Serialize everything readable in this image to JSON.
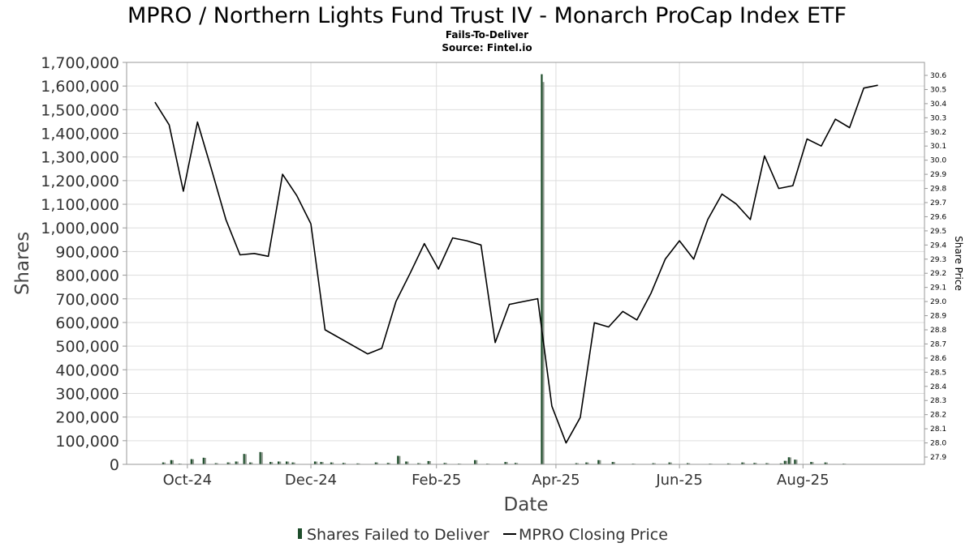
{
  "chart_data": {
    "type": "bar+line",
    "title": "MPRO / Northern Lights Fund Trust IV - Monarch ProCap Index ETF",
    "subtitle_lines": [
      "Fails-To-Deliver",
      "Source: Fintel.io"
    ],
    "xlabel": "Date",
    "ylabel": "Shares",
    "y2label": "Share Price",
    "ylim": [
      0,
      1700000
    ],
    "y2lim": [
      27.9,
      30.6
    ],
    "xlim": [
      "2024-09-01",
      "2025-09-30"
    ],
    "yticks": [
      "0",
      "100,000",
      "200,000",
      "300,000",
      "400,000",
      "500,000",
      "600,000",
      "700,000",
      "800,000",
      "900,000",
      "1,000,000",
      "1,100,000",
      "1,200,000",
      "1,300,000",
      "1,400,000",
      "1,500,000",
      "1,600,000",
      "1,700,000"
    ],
    "y2ticks": [
      "27.9",
      "28.0",
      "28.1",
      "28.2",
      "28.3",
      "28.4",
      "28.5",
      "28.6",
      "28.7",
      "28.8",
      "28.9",
      "29.0",
      "29.1",
      "29.2",
      "29.3",
      "29.4",
      "29.5",
      "29.6",
      "29.7",
      "29.8",
      "29.9",
      "30.0",
      "30.1",
      "30.2",
      "30.3",
      "30.4",
      "30.5",
      "30.6"
    ],
    "xticks": [
      {
        "date": "2024-10-01",
        "label": "Oct-24"
      },
      {
        "date": "2024-12-01",
        "label": "Dec-24"
      },
      {
        "date": "2025-02-01",
        "label": "Feb-25"
      },
      {
        "date": "2025-04-01",
        "label": "Apr-25"
      },
      {
        "date": "2025-06-01",
        "label": "Jun-25"
      },
      {
        "date": "2025-08-01",
        "label": "Aug-25"
      }
    ],
    "grid": true,
    "legend_position": "bottom",
    "series": [
      {
        "name": "Shares Failed to Deliver",
        "kind": "bar",
        "color": "#1e4d2b",
        "points": [
          [
            "2024-09-19",
            8000
          ],
          [
            "2024-09-23",
            18000
          ],
          [
            "2024-09-27",
            3000
          ],
          [
            "2024-10-03",
            22000
          ],
          [
            "2024-10-09",
            28000
          ],
          [
            "2024-10-15",
            5000
          ],
          [
            "2024-10-21",
            8000
          ],
          [
            "2024-10-25",
            12000
          ],
          [
            "2024-10-29",
            44000
          ],
          [
            "2024-11-01",
            8000
          ],
          [
            "2024-11-06",
            52000
          ],
          [
            "2024-11-11",
            10000
          ],
          [
            "2024-11-15",
            12000
          ],
          [
            "2024-11-19",
            12000
          ],
          [
            "2024-11-22",
            8000
          ],
          [
            "2024-12-03",
            12000
          ],
          [
            "2024-12-06",
            10000
          ],
          [
            "2024-12-11",
            8000
          ],
          [
            "2024-12-17",
            6000
          ],
          [
            "2024-12-24",
            4000
          ],
          [
            "2025-01-02",
            8000
          ],
          [
            "2025-01-08",
            6000
          ],
          [
            "2025-01-13",
            36000
          ],
          [
            "2025-01-17",
            12000
          ],
          [
            "2025-01-23",
            5000
          ],
          [
            "2025-01-28",
            14000
          ],
          [
            "2025-02-05",
            6000
          ],
          [
            "2025-02-12",
            3000
          ],
          [
            "2025-02-20",
            18000
          ],
          [
            "2025-02-26",
            3000
          ],
          [
            "2025-03-07",
            10000
          ],
          [
            "2025-03-12",
            6000
          ],
          [
            "2025-03-25",
            1650000
          ],
          [
            "2025-04-11",
            5000
          ],
          [
            "2025-04-16",
            8000
          ],
          [
            "2025-04-22",
            18000
          ],
          [
            "2025-04-29",
            10000
          ],
          [
            "2025-05-09",
            3000
          ],
          [
            "2025-05-19",
            5000
          ],
          [
            "2025-05-27",
            8000
          ],
          [
            "2025-06-05",
            5000
          ],
          [
            "2025-06-16",
            3000
          ],
          [
            "2025-06-25",
            4000
          ],
          [
            "2025-07-02",
            8000
          ],
          [
            "2025-07-08",
            6000
          ],
          [
            "2025-07-14",
            5000
          ],
          [
            "2025-07-21",
            4000
          ],
          [
            "2025-07-23",
            15000
          ],
          [
            "2025-07-25",
            30000
          ],
          [
            "2025-07-28",
            20000
          ],
          [
            "2025-08-05",
            10000
          ],
          [
            "2025-08-12",
            8000
          ],
          [
            "2025-08-21",
            3000
          ]
        ]
      },
      {
        "name": "MPRO Closing Price",
        "kind": "line",
        "color": "#000000",
        "points": [
          [
            "2024-09-15",
            30.41
          ],
          [
            "2024-09-22",
            30.25
          ],
          [
            "2024-09-29",
            29.78
          ],
          [
            "2024-10-06",
            30.27
          ],
          [
            "2024-10-13",
            29.93
          ],
          [
            "2024-10-20",
            29.58
          ],
          [
            "2024-10-27",
            29.33
          ],
          [
            "2024-11-03",
            29.34
          ],
          [
            "2024-11-10",
            29.32
          ],
          [
            "2024-11-17",
            29.9
          ],
          [
            "2024-11-24",
            29.75
          ],
          [
            "2024-12-01",
            29.55
          ],
          [
            "2024-12-08",
            28.8
          ],
          [
            "2024-12-29",
            28.63
          ],
          [
            "2025-01-05",
            28.67
          ],
          [
            "2025-01-12",
            29.0
          ],
          [
            "2025-01-19",
            29.2
          ],
          [
            "2025-01-26",
            29.41
          ],
          [
            "2025-02-02",
            29.23
          ],
          [
            "2025-02-09",
            29.45
          ],
          [
            "2025-02-16",
            29.43
          ],
          [
            "2025-02-23",
            29.4
          ],
          [
            "2025-03-02",
            28.71
          ],
          [
            "2025-03-09",
            28.98
          ],
          [
            "2025-03-23",
            29.02
          ],
          [
            "2025-03-30",
            28.26
          ],
          [
            "2025-04-06",
            28.0
          ],
          [
            "2025-04-13",
            28.18
          ],
          [
            "2025-04-20",
            28.85
          ],
          [
            "2025-04-27",
            28.82
          ],
          [
            "2025-05-04",
            28.93
          ],
          [
            "2025-05-11",
            28.87
          ],
          [
            "2025-05-18",
            29.06
          ],
          [
            "2025-05-25",
            29.3
          ],
          [
            "2025-06-01",
            29.43
          ],
          [
            "2025-06-08",
            29.3
          ],
          [
            "2025-06-15",
            29.58
          ],
          [
            "2025-06-22",
            29.76
          ],
          [
            "2025-06-29",
            29.69
          ],
          [
            "2025-07-06",
            29.58
          ],
          [
            "2025-07-13",
            30.03
          ],
          [
            "2025-07-20",
            29.8
          ],
          [
            "2025-07-27",
            29.82
          ],
          [
            "2025-08-03",
            30.15
          ],
          [
            "2025-08-10",
            30.1
          ],
          [
            "2025-08-17",
            30.29
          ],
          [
            "2025-08-24",
            30.23
          ],
          [
            "2025-08-31",
            30.51
          ],
          [
            "2025-09-07",
            30.53
          ]
        ]
      }
    ]
  }
}
